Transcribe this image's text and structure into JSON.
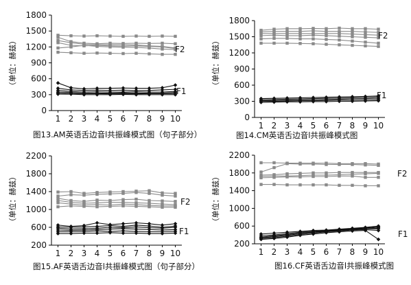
{
  "chart_data": [
    {
      "type": "line",
      "title": "图13.AM英语舌边音l共振峰模式图（句子部分）",
      "xlabel": "",
      "ylabel": "（单位：赫兹）",
      "categories": [
        "1",
        "2",
        "3",
        "4",
        "5",
        "6",
        "7",
        "8",
        "9",
        "10"
      ],
      "ylim": [
        0,
        1800
      ],
      "yticks": [
        0,
        300,
        600,
        900,
        1200,
        1500,
        1800
      ],
      "grid": false,
      "series_labels": [
        "F2",
        "F1"
      ],
      "series": [
        {
          "group": "F2",
          "values": [
            1420,
            1410,
            1405,
            1410,
            1405,
            1400,
            1405,
            1400,
            1405,
            1400
          ]
        },
        {
          "group": "F2",
          "values": [
            1380,
            1300,
            1270,
            1260,
            1270,
            1265,
            1270,
            1265,
            1270,
            1260
          ]
        },
        {
          "group": "F2",
          "values": [
            1320,
            1280,
            1250,
            1240,
            1245,
            1240,
            1235,
            1220,
            1210,
            1180
          ]
        },
        {
          "group": "F2",
          "values": [
            1280,
            1230,
            1220,
            1230,
            1220,
            1215,
            1220,
            1210,
            1200,
            1170
          ]
        },
        {
          "group": "F2",
          "values": [
            1180,
            1200,
            1230,
            1210,
            1200,
            1195,
            1190,
            1180,
            1160,
            1150
          ]
        },
        {
          "group": "F2",
          "values": [
            1100,
            1090,
            1080,
            1085,
            1080,
            1075,
            1080,
            1070,
            1060,
            1060
          ]
        },
        {
          "group": "F1",
          "values": [
            520,
            430,
            410,
            420,
            420,
            425,
            420,
            420,
            430,
            480
          ]
        },
        {
          "group": "F1",
          "values": [
            420,
            390,
            380,
            385,
            380,
            385,
            380,
            380,
            390,
            400
          ]
        },
        {
          "group": "F1",
          "values": [
            380,
            360,
            350,
            355,
            350,
            350,
            355,
            350,
            350,
            360
          ]
        },
        {
          "group": "F1",
          "values": [
            350,
            340,
            330,
            330,
            330,
            335,
            330,
            330,
            330,
            340
          ]
        },
        {
          "group": "F1",
          "values": [
            330,
            320,
            320,
            320,
            315,
            320,
            315,
            320,
            320,
            320
          ]
        },
        {
          "group": "F1",
          "values": [
            310,
            310,
            300,
            300,
            300,
            305,
            300,
            300,
            300,
            300
          ]
        }
      ]
    },
    {
      "type": "line",
      "title": "图14.CM英语舌边音l共振峰模式图",
      "xlabel": "",
      "ylabel": "（单位：赫兹）",
      "categories": [
        "1",
        "2",
        "3",
        "4",
        "5",
        "6",
        "7",
        "8",
        "9",
        "10"
      ],
      "ylim": [
        0,
        1800
      ],
      "yticks": [
        0,
        300,
        600,
        900,
        1200,
        1500,
        1800
      ],
      "grid": false,
      "series_labels": [
        "F2",
        "F1"
      ],
      "series": [
        {
          "group": "F2",
          "values": [
            1620,
            1640,
            1650,
            1650,
            1655,
            1650,
            1660,
            1650,
            1650,
            1640
          ]
        },
        {
          "group": "F2",
          "values": [
            1590,
            1600,
            1600,
            1600,
            1610,
            1600,
            1600,
            1600,
            1590,
            1580
          ]
        },
        {
          "group": "F2",
          "values": [
            1560,
            1560,
            1560,
            1560,
            1560,
            1560,
            1560,
            1550,
            1540,
            1530
          ]
        },
        {
          "group": "F2",
          "values": [
            1520,
            1530,
            1520,
            1520,
            1530,
            1520,
            1510,
            1500,
            1490,
            1480
          ]
        },
        {
          "group": "F2",
          "values": [
            1460,
            1470,
            1470,
            1460,
            1460,
            1450,
            1440,
            1420,
            1400,
            1380
          ]
        },
        {
          "group": "F2",
          "values": [
            1380,
            1380,
            1380,
            1375,
            1370,
            1360,
            1350,
            1340,
            1330,
            1320
          ]
        },
        {
          "group": "F1",
          "values": [
            350,
            355,
            360,
            365,
            370,
            375,
            380,
            385,
            390,
            400
          ]
        },
        {
          "group": "F1",
          "values": [
            330,
            335,
            340,
            345,
            350,
            355,
            360,
            365,
            370,
            380
          ]
        },
        {
          "group": "F1",
          "values": [
            310,
            315,
            320,
            325,
            330,
            335,
            340,
            345,
            350,
            355
          ]
        },
        {
          "group": "F1",
          "values": [
            300,
            300,
            305,
            310,
            310,
            315,
            320,
            320,
            325,
            330
          ]
        },
        {
          "group": "F1",
          "values": [
            280,
            285,
            290,
            290,
            295,
            295,
            300,
            300,
            305,
            310
          ]
        }
      ]
    },
    {
      "type": "line",
      "title": "图15.AF英语舌边音l共振峰模式图（句子部分）",
      "xlabel": "",
      "ylabel": "（单位：赫兹）",
      "categories": [
        "1",
        "2",
        "3",
        "4",
        "5",
        "6",
        "7",
        "8",
        "9",
        "10"
      ],
      "ylim": [
        200,
        2200
      ],
      "yticks": [
        200,
        600,
        1000,
        1400,
        1800,
        2200
      ],
      "grid": false,
      "series_labels": [
        "F2",
        "F1"
      ],
      "series": [
        {
          "group": "F2",
          "values": [
            1390,
            1400,
            1360,
            1380,
            1390,
            1400,
            1410,
            1420,
            1370,
            1360
          ]
        },
        {
          "group": "F2",
          "values": [
            1300,
            1330,
            1320,
            1340,
            1350,
            1360,
            1380,
            1360,
            1320,
            1300
          ]
        },
        {
          "group": "F2",
          "values": [
            1250,
            1200,
            1180,
            1210,
            1200,
            1220,
            1230,
            1200,
            1190,
            1180
          ]
        },
        {
          "group": "F2",
          "values": [
            1200,
            1160,
            1140,
            1150,
            1160,
            1160,
            1150,
            1140,
            1120,
            1110
          ]
        },
        {
          "group": "F2",
          "values": [
            1150,
            1120,
            1100,
            1110,
            1100,
            1120,
            1110,
            1090,
            1080,
            1080
          ]
        },
        {
          "group": "F2",
          "values": [
            1060,
            1080,
            1070,
            1060,
            1070,
            1080,
            1070,
            1060,
            1050,
            1050
          ]
        },
        {
          "group": "F1",
          "values": [
            650,
            620,
            640,
            700,
            660,
            680,
            700,
            680,
            650,
            680
          ]
        },
        {
          "group": "F1",
          "values": [
            610,
            600,
            610,
            620,
            640,
            620,
            650,
            630,
            600,
            630
          ]
        },
        {
          "group": "F1",
          "values": [
            580,
            560,
            570,
            580,
            600,
            590,
            610,
            590,
            580,
            600
          ]
        },
        {
          "group": "F1",
          "values": [
            540,
            530,
            540,
            550,
            560,
            570,
            560,
            550,
            540,
            550
          ]
        },
        {
          "group": "F1",
          "values": [
            500,
            500,
            510,
            520,
            510,
            520,
            510,
            500,
            500,
            510
          ]
        },
        {
          "group": "F1",
          "values": [
            460,
            460,
            470,
            470,
            480,
            470,
            470,
            460,
            460,
            470
          ]
        }
      ]
    },
    {
      "type": "line",
      "title": "图16.CF英语舌边音l共振峰模式图",
      "xlabel": "",
      "ylabel": "（单位：赫兹）",
      "categories": [
        "1",
        "2",
        "3",
        "4",
        "5",
        "6",
        "7",
        "8",
        "9",
        "10"
      ],
      "ylim": [
        200,
        2200
      ],
      "yticks": [
        200,
        600,
        1000,
        1400,
        1800,
        2200
      ],
      "grid": false,
      "series_labels": [
        "F2",
        "F1"
      ],
      "series": [
        {
          "group": "F2",
          "values": [
            2030,
            2030,
            2020,
            2020,
            2020,
            2020,
            2010,
            2010,
            2010,
            2000
          ]
        },
        {
          "group": "F2",
          "values": [
            1820,
            1920,
            2010,
            2000,
            2000,
            1990,
            1990,
            1990,
            1980,
            1970
          ]
        },
        {
          "group": "F2",
          "values": [
            1750,
            1760,
            1780,
            1790,
            1800,
            1800,
            1810,
            1810,
            1810,
            1810
          ]
        },
        {
          "group": "F2",
          "values": [
            1720,
            1730,
            1730,
            1740,
            1750,
            1750,
            1760,
            1770,
            1780,
            1790
          ]
        },
        {
          "group": "F2",
          "values": [
            1690,
            1700,
            1710,
            1710,
            1720,
            1720,
            1730,
            1730,
            1700,
            1700
          ]
        },
        {
          "group": "F2",
          "values": [
            1540,
            1540,
            1530,
            1530,
            1530,
            1530,
            1520,
            1520,
            1510,
            1510
          ]
        },
        {
          "group": "F1",
          "values": [
            420,
            440,
            460,
            480,
            500,
            510,
            530,
            550,
            570,
            600
          ]
        },
        {
          "group": "F1",
          "values": [
            380,
            400,
            430,
            460,
            480,
            500,
            520,
            540,
            560,
            580
          ]
        },
        {
          "group": "F1",
          "values": [
            350,
            380,
            410,
            440,
            470,
            490,
            510,
            530,
            550,
            560
          ]
        },
        {
          "group": "F1",
          "values": [
            340,
            360,
            390,
            430,
            460,
            480,
            500,
            520,
            540,
            540
          ]
        },
        {
          "group": "F1",
          "values": [
            320,
            340,
            370,
            410,
            440,
            470,
            490,
            510,
            520,
            500
          ]
        },
        {
          "group": "F1",
          "values": [
            300,
            320,
            350,
            390,
            420,
            450,
            470,
            490,
            500,
            300
          ]
        }
      ]
    }
  ]
}
